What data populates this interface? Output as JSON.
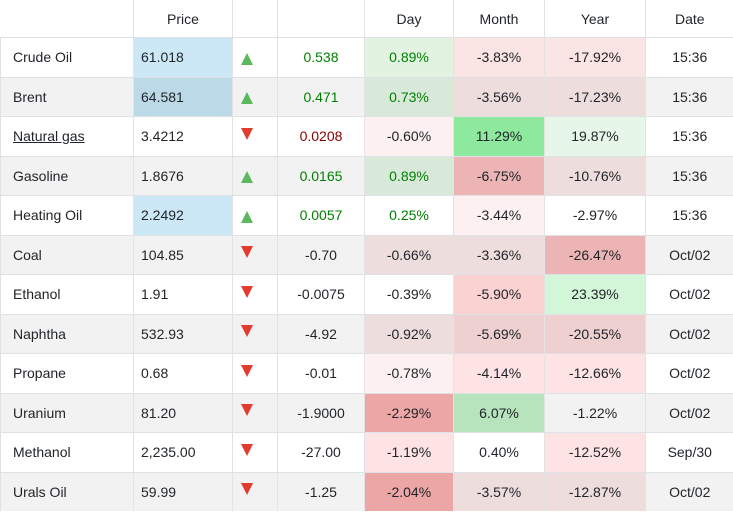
{
  "headers": {
    "name": "",
    "price": "Price",
    "arrow": "",
    "change": "",
    "day": "Day",
    "month": "Month",
    "year": "Year",
    "date": "Date"
  },
  "rows": [
    {
      "name": "Crude Oil",
      "link": false,
      "price": "61.018",
      "price_bg": "#cce8f6",
      "dir": "up",
      "change": "0.538",
      "day": "0.89%",
      "day_bg": "#e2f3e2",
      "month": "-3.83%",
      "month_bg": "#fbe4e4",
      "year": "-17.92%",
      "year_bg": "#fbe4e4",
      "date": "15:36"
    },
    {
      "name": "Brent",
      "link": false,
      "price": "64.581",
      "price_bg": "#bcd9e8",
      "dir": "up",
      "change": "0.471",
      "day": "0.73%",
      "day_bg": "#d9e9d9",
      "month": "-3.56%",
      "month_bg": "#eedddd",
      "year": "-17.23%",
      "year_bg": "#eedddd",
      "date": "15:36"
    },
    {
      "name": "Natural gas",
      "link": true,
      "price": "3.4212",
      "price_bg": "",
      "dir": "down",
      "change": "0.0208",
      "day": "-0.60%",
      "day_bg": "#fdf0f0",
      "month": "11.29%",
      "month_bg": "#8ee89d",
      "year": "19.87%",
      "year_bg": "#e6f7ea",
      "date": "15:36"
    },
    {
      "name": "Gasoline",
      "link": false,
      "price": "1.8676",
      "price_bg": "",
      "dir": "up",
      "change": "0.0165",
      "day": "0.89%",
      "day_bg": "#d9e9d9",
      "month": "-6.75%",
      "month_bg": "#ecb4b4",
      "year": "-10.76%",
      "year_bg": "#eedddd",
      "date": "15:36"
    },
    {
      "name": "Heating Oil",
      "link": false,
      "price": "2.2492",
      "price_bg": "#cce8f6",
      "dir": "up",
      "change": "0.0057",
      "day": "0.25%",
      "day_bg": "",
      "month": "-3.44%",
      "month_bg": "#fdf0f0",
      "year": "-2.97%",
      "year_bg": "",
      "date": "15:36"
    },
    {
      "name": "Coal",
      "link": false,
      "price": "104.85",
      "price_bg": "",
      "dir": "down",
      "change": "-0.70",
      "day": "-0.66%",
      "day_bg": "#eedddd",
      "month": "-3.36%",
      "month_bg": "#eedddd",
      "year": "-26.47%",
      "year_bg": "#ecb4b4",
      "date": "Oct/02"
    },
    {
      "name": "Ethanol",
      "link": false,
      "price": "1.91",
      "price_bg": "",
      "dir": "down",
      "change": "-0.0075",
      "day": "-0.39%",
      "day_bg": "",
      "month": "-5.90%",
      "month_bg": "#fbd2d2",
      "year": "23.39%",
      "year_bg": "#d3f5d8",
      "date": "Oct/02"
    },
    {
      "name": "Naphtha",
      "link": false,
      "price": "532.93",
      "price_bg": "",
      "dir": "down",
      "change": "-4.92",
      "day": "-0.92%",
      "day_bg": "#eedddd",
      "month": "-5.69%",
      "month_bg": "#eed0d0",
      "year": "-20.55%",
      "year_bg": "#eed0d0",
      "date": "Oct/02"
    },
    {
      "name": "Propane",
      "link": false,
      "price": "0.68",
      "price_bg": "",
      "dir": "down",
      "change": "-0.01",
      "day": "-0.78%",
      "day_bg": "#fdf0f0",
      "month": "-4.14%",
      "month_bg": "#fde3e3",
      "year": "-12.66%",
      "year_bg": "#fde3e3",
      "date": "Oct/02"
    },
    {
      "name": "Uranium",
      "link": false,
      "price": "81.20",
      "price_bg": "",
      "dir": "down",
      "change": "-1.9000",
      "day": "-2.29%",
      "day_bg": "#eca6a6",
      "month": "6.07%",
      "month_bg": "#b7e3bd",
      "year": "-1.22%",
      "year_bg": "",
      "date": "Oct/02"
    },
    {
      "name": "Methanol",
      "link": false,
      "price": "2,235.00",
      "price_bg": "",
      "dir": "down",
      "change": "-27.00",
      "day": "-1.19%",
      "day_bg": "#fde3e3",
      "month": "0.40%",
      "month_bg": "",
      "year": "-12.52%",
      "year_bg": "#fde3e3",
      "date": "Sep/30"
    },
    {
      "name": "Urals Oil",
      "link": false,
      "price": "59.99",
      "price_bg": "",
      "dir": "down",
      "change": "-1.25",
      "day": "-2.04%",
      "day_bg": "#eca6a6",
      "month": "-3.57%",
      "month_bg": "#eedddd",
      "year": "-12.87%",
      "year_bg": "#eedddd",
      "date": "Oct/02"
    }
  ]
}
